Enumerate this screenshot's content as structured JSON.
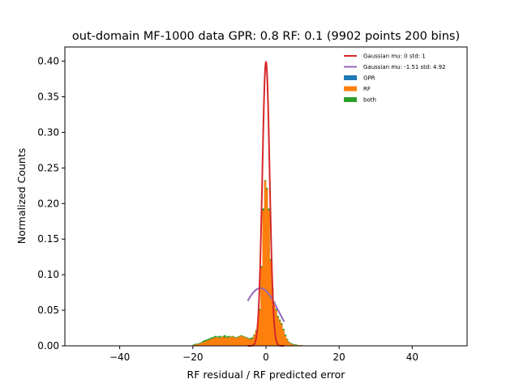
{
  "chart_data": {
    "type": "bar",
    "title": "out-domain MF-1000 data GPR: 0.8 RF: 0.1 (9902 points 200 bins)",
    "xlabel": "RF residual / RF predicted error",
    "ylabel": "Normalized Counts",
    "xlim": [
      -55,
      55
    ],
    "ylim": [
      0,
      0.42
    ],
    "x_ticks": [
      "−40",
      "−20",
      "0",
      "20",
      "40"
    ],
    "x_tick_values": [
      -40,
      -20,
      0,
      20,
      40
    ],
    "y_ticks": [
      "0.00",
      "0.05",
      "0.10",
      "0.15",
      "0.20",
      "0.25",
      "0.30",
      "0.35",
      "0.40"
    ],
    "y_tick_values": [
      0,
      0.05,
      0.1,
      0.15,
      0.2,
      0.25,
      0.3,
      0.35,
      0.4
    ],
    "grid": false,
    "legend_position": "top-right",
    "colors": {
      "gpr": "#1f77b4",
      "rf": "#ff7f0e",
      "both": "#2ca02c",
      "gauss_std": "#d62728",
      "gauss_fit": "#9467bd"
    },
    "series": [
      {
        "name": "Gaussian mu: 0 std: 1",
        "kind": "line",
        "mu": 0,
        "std": 1,
        "x_range": [
          -5,
          5
        ]
      },
      {
        "name": "Gaussian mu: -1.51 std: 4.92",
        "kind": "line",
        "mu": -1.51,
        "std": 4.92,
        "x_range": [
          -5,
          5
        ]
      },
      {
        "name": "GPR",
        "kind": "histogram",
        "x": [],
        "values": []
      },
      {
        "name": "RF",
        "kind": "histogram",
        "bin_width": 0.55,
        "x": [
          -20,
          -19.5,
          -19,
          -18.5,
          -18,
          -17.5,
          -17,
          -16.5,
          -16,
          -15.5,
          -15,
          -14.5,
          -14,
          -13.5,
          -13,
          -12.5,
          -12,
          -11.5,
          -11,
          -10.5,
          -10,
          -9.5,
          -9,
          -8.5,
          -8,
          -7.5,
          -7,
          -6.5,
          -6,
          -5.5,
          -5,
          -4.5,
          -4,
          -3.5,
          -3,
          -2.5,
          -2,
          -1.5,
          -1,
          -0.5,
          0,
          0.5,
          1,
          1.5,
          2,
          2.5,
          3,
          3.5,
          4,
          4.5,
          5,
          5.5,
          6,
          6.5,
          7,
          7.5,
          8,
          8.5,
          9,
          9.5
        ],
        "values": [
          0.001,
          0.002,
          0.002,
          0.003,
          0.004,
          0.005,
          0.006,
          0.007,
          0.008,
          0.009,
          0.01,
          0.011,
          0.012,
          0.012,
          0.011,
          0.012,
          0.013,
          0.012,
          0.011,
          0.012,
          0.012,
          0.013,
          0.012,
          0.011,
          0.012,
          0.013,
          0.014,
          0.013,
          0.012,
          0.011,
          0.01,
          0.009,
          0.01,
          0.015,
          0.021,
          0.03,
          0.05,
          0.11,
          0.19,
          0.232,
          0.22,
          0.19,
          0.12,
          0.08,
          0.06,
          0.05,
          0.04,
          0.035,
          0.03,
          0.022,
          0.014,
          0.009,
          0.005,
          0.003,
          0.002,
          0.001,
          0.001,
          0.001,
          0.001,
          0.001
        ]
      },
      {
        "name": "both",
        "kind": "histogram",
        "x": [
          -20,
          -19.5,
          -19,
          -18.5,
          -18,
          -17.5,
          -17,
          -16.5,
          -16,
          -15.5,
          -15,
          -14.5,
          -14,
          -13.5,
          -13,
          -12.5,
          -12,
          -11.5,
          -11,
          -10.5,
          -10,
          -9.5,
          -9,
          -8.5,
          -8,
          -7.5,
          -7,
          -6.5,
          -6,
          -5.5,
          -5,
          -4.5,
          -4,
          -3.5,
          -3,
          -2.5,
          -2,
          -1.5,
          -1,
          -0.5,
          0,
          0.5,
          1,
          1.5,
          2,
          2.5,
          3,
          3.5,
          4,
          4.5,
          5,
          5.5,
          6,
          6.5,
          7,
          7.5,
          8,
          8.5,
          9,
          9.5
        ],
        "values": [
          0.002,
          0.003,
          0.003,
          0.004,
          0.005,
          0.007,
          0.008,
          0.009,
          0.01,
          0.011,
          0.012,
          0.013,
          0.014,
          0.013,
          0.014,
          0.013,
          0.014,
          0.015,
          0.013,
          0.014,
          0.013,
          0.014,
          0.013,
          0.012,
          0.013,
          0.014,
          0.015,
          0.014,
          0.013,
          0.012,
          0.011,
          0.011,
          0.012,
          0.016,
          0.022,
          0.031,
          0.052,
          0.112,
          0.193,
          0.233,
          0.222,
          0.193,
          0.122,
          0.082,
          0.062,
          0.052,
          0.042,
          0.037,
          0.032,
          0.024,
          0.016,
          0.01,
          0.006,
          0.004,
          0.003,
          0.002,
          0.002,
          0.001,
          0.001,
          0.001
        ]
      }
    ]
  }
}
